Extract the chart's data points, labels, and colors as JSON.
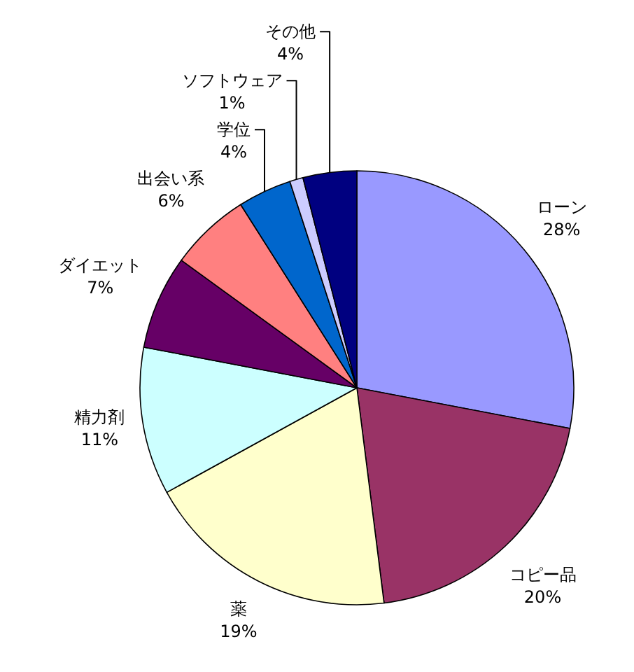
{
  "chart_data": {
    "type": "pie",
    "categories": [
      "ローン",
      "コピー品",
      "薬",
      "精力剤",
      "ダイエット",
      "出会い系",
      "学位",
      "ソフトウェア",
      "その他"
    ],
    "values": [
      28,
      20,
      19,
      11,
      7,
      6,
      4,
      1,
      4
    ],
    "colors": [
      "#9999ff",
      "#993366",
      "#ffffcc",
      "#ccffff",
      "#660066",
      "#ff8080",
      "#0066cc",
      "#ccccff",
      "#000080"
    ],
    "value_labels": [
      "28%",
      "20%",
      "19%",
      "11%",
      "7%",
      "6%",
      "4%",
      "1%",
      "4%"
    ]
  }
}
